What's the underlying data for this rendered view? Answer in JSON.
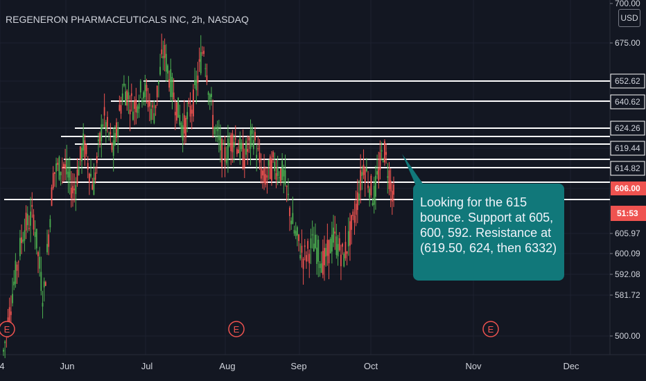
{
  "title": "REGENERON PHARMACEUTICALS INC, 2h, NASDAQ",
  "currency": "USD",
  "colors": {
    "background": "#131722",
    "grid": "#1e2230",
    "up": "#26a69a",
    "up_candle": "#4caf50",
    "down": "#ef5350",
    "level_line": "#ffffff",
    "callout": "#11787a",
    "price_badge": "#ef5350",
    "earnings": "#ef5350"
  },
  "annotation": "Looking for the 615 bounce. Support at 605, 600, 592. Resistance at (619.50, 624, then 6332)",
  "price_axis": {
    "labels": [
      "700.00",
      "675.00",
      "652.62",
      "640.62",
      "624.26",
      "619.44",
      "614.82",
      "605.97",
      "600.09",
      "592.08",
      "581.72",
      "500.00"
    ],
    "current_price": "606.00",
    "countdown": "51:53"
  },
  "time_axis": {
    "labels": [
      "4",
      "Jun",
      "Jul",
      "Aug",
      "Sep",
      "Oct",
      "Nov",
      "Dec"
    ]
  },
  "earnings_markers": [
    "E",
    "E",
    "E"
  ],
  "chart_data": {
    "type": "candlestick",
    "title": "REGENERON PHARMACEUTICALS INC, 2h, NASDAQ",
    "y_axis_unit": "USD",
    "horizontal_levels": [
      652.62,
      640.62,
      624.26,
      619.44,
      614.82,
      605.97
    ],
    "current_price": 606.0,
    "earnings_months": [
      "May",
      "Aug",
      "Nov"
    ],
    "approx_series": [
      {
        "x": "May-12",
        "close": 552
      },
      {
        "x": "May-16",
        "close": 575
      },
      {
        "x": "May-20",
        "close": 595
      },
      {
        "x": "May-24",
        "close": 600
      },
      {
        "x": "May-28",
        "close": 570
      },
      {
        "x": "Jun-01",
        "close": 615
      },
      {
        "x": "Jun-05",
        "close": 618
      },
      {
        "x": "Jun-09",
        "close": 608
      },
      {
        "x": "Jun-13",
        "close": 625
      },
      {
        "x": "Jun-17",
        "close": 610
      },
      {
        "x": "Jun-21",
        "close": 635
      },
      {
        "x": "Jun-25",
        "close": 622
      },
      {
        "x": "Jun-29",
        "close": 645
      },
      {
        "x": "Jul-03",
        "close": 638
      },
      {
        "x": "Jul-07",
        "close": 645
      },
      {
        "x": "Jul-11",
        "close": 635
      },
      {
        "x": "Jul-15",
        "close": 658
      },
      {
        "x": "Jul-19",
        "close": 642
      },
      {
        "x": "Jul-23",
        "close": 630
      },
      {
        "x": "Jul-27",
        "close": 640
      },
      {
        "x": "Jul-31",
        "close": 660
      },
      {
        "x": "Aug-04",
        "close": 632
      },
      {
        "x": "Aug-08",
        "close": 620
      },
      {
        "x": "Aug-12",
        "close": 628
      },
      {
        "x": "Aug-16",
        "close": 620
      },
      {
        "x": "Aug-20",
        "close": 628
      },
      {
        "x": "Aug-24",
        "close": 612
      },
      {
        "x": "Aug-28",
        "close": 618
      },
      {
        "x": "Sep-01",
        "close": 614
      },
      {
        "x": "Sep-05",
        "close": 595
      },
      {
        "x": "Sep-09",
        "close": 585
      },
      {
        "x": "Sep-13",
        "close": 590
      },
      {
        "x": "Sep-17",
        "close": 583
      },
      {
        "x": "Sep-21",
        "close": 592
      },
      {
        "x": "Sep-25",
        "close": 585
      },
      {
        "x": "Sep-29",
        "close": 598
      },
      {
        "x": "Oct-01",
        "close": 618
      },
      {
        "x": "Oct-03",
        "close": 606
      },
      {
        "x": "Oct-05",
        "close": 624
      },
      {
        "x": "Oct-07",
        "close": 606
      }
    ]
  }
}
